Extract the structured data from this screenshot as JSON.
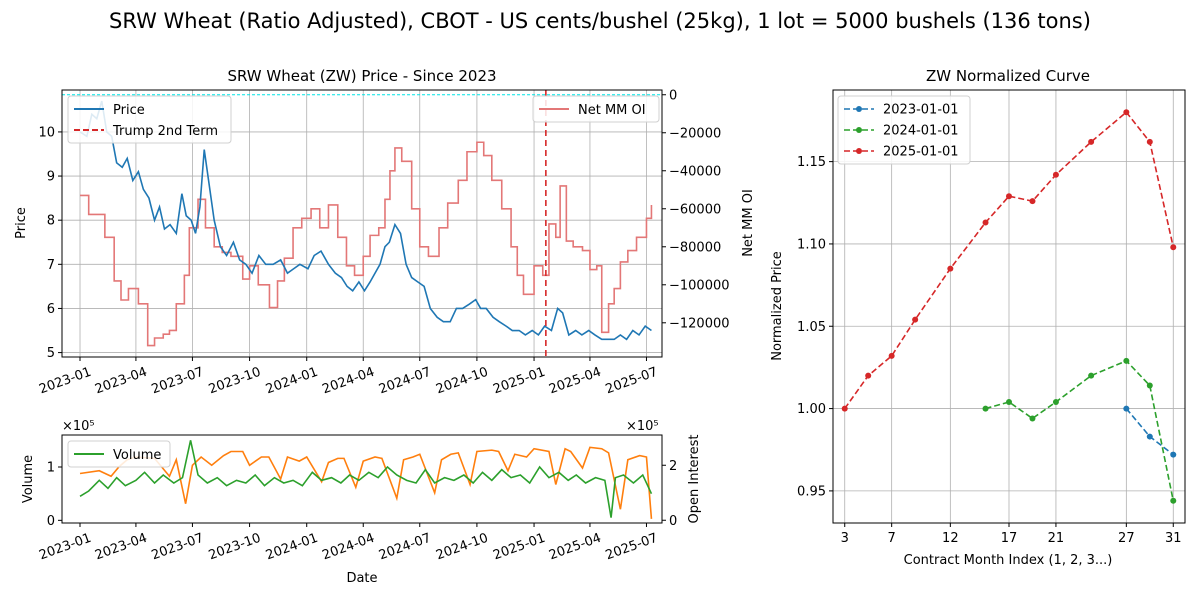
{
  "figure_title": "SRW Wheat (Ratio Adjusted), CBOT - US cents/bushel (25kg), 1 lot = 5000 bushels (136 tons)",
  "colors": {
    "price": "#1f77b4",
    "net_mm_oi": "#e37777",
    "trump": "#d62728",
    "zero_line": "#00e5e5",
    "volume": "#2ca02c",
    "open_interest": "#ff7f0e",
    "curve_2023": "#1f77b4",
    "curve_2024": "#2ca02c",
    "curve_2025": "#d62728",
    "grid": "#b0b0b0"
  },
  "chart_data": [
    {
      "type": "line",
      "title": "SRW Wheat (ZW) Price - Since 2023",
      "ylabel": "Price",
      "y2label": "Net MM OI",
      "ylim": [
        4.9,
        10.95
      ],
      "y2lim": [
        -138000,
        2500
      ],
      "xlim": [
        "2022-12-03",
        "2025-07-26"
      ],
      "yticks": [
        "5",
        "6",
        "7",
        "8",
        "9",
        "10"
      ],
      "y2ticks": [
        "−120000",
        "−100000",
        "−80000",
        "−60000",
        "−40000",
        "−20000",
        "0"
      ],
      "xticks": [
        "2023-01",
        "2023-04",
        "2023-07",
        "2023-10",
        "2024-01",
        "2024-04",
        "2024-07",
        "2024-10",
        "2025-01",
        "2025-04",
        "2025-07"
      ],
      "grid": true,
      "legend_left": [
        "Price",
        "Trump 2nd Term"
      ],
      "legend_right": [
        "Net MM OI"
      ],
      "trump_date": "2025-01-20",
      "series": [
        {
          "name": "Price",
          "x": [
            "2023-01-01",
            "2023-01-12",
            "2023-01-20",
            "2023-01-28",
            "2023-02-05",
            "2023-02-13",
            "2023-02-21",
            "2023-03-01",
            "2023-03-10",
            "2023-03-18",
            "2023-03-27",
            "2023-04-05",
            "2023-04-13",
            "2023-04-22",
            "2023-05-01",
            "2023-05-09",
            "2023-05-17",
            "2023-05-26",
            "2023-06-05",
            "2023-06-14",
            "2023-06-21",
            "2023-06-29",
            "2023-07-06",
            "2023-07-13",
            "2023-07-20",
            "2023-07-27",
            "2023-08-05",
            "2023-08-15",
            "2023-08-25",
            "2023-09-05",
            "2023-09-15",
            "2023-09-25",
            "2023-10-05",
            "2023-10-16",
            "2023-10-27",
            "2023-11-08",
            "2023-11-20",
            "2023-12-01",
            "2023-12-11",
            "2023-12-21",
            "2024-01-03",
            "2024-01-13",
            "2024-01-24",
            "2024-02-05",
            "2024-02-16",
            "2024-02-26",
            "2024-03-06",
            "2024-03-15",
            "2024-03-25",
            "2024-04-03",
            "2024-04-12",
            "2024-04-20",
            "2024-04-28",
            "2024-05-06",
            "2024-05-13",
            "2024-05-22",
            "2024-05-31",
            "2024-06-09",
            "2024-06-18",
            "2024-06-28",
            "2024-07-08",
            "2024-07-18",
            "2024-07-29",
            "2024-08-08",
            "2024-08-19",
            "2024-08-29",
            "2024-09-08",
            "2024-09-19",
            "2024-09-29",
            "2024-10-07",
            "2024-10-16",
            "2024-10-27",
            "2024-11-06",
            "2024-11-17",
            "2024-11-27",
            "2024-12-08",
            "2024-12-18",
            "2024-12-29",
            "2025-01-08",
            "2025-01-18",
            "2025-01-29",
            "2025-02-08",
            "2025-02-16",
            "2025-02-26",
            "2025-03-09",
            "2025-03-19",
            "2025-03-30",
            "2025-04-09",
            "2025-04-20",
            "2025-04-30",
            "2025-05-10",
            "2025-05-20",
            "2025-05-30",
            "2025-06-09",
            "2025-06-19",
            "2025-06-29",
            "2025-07-09"
          ],
          "values": [
            10.0,
            9.9,
            10.4,
            10.3,
            10.7,
            10.0,
            9.9,
            9.3,
            9.2,
            9.4,
            8.9,
            9.1,
            8.7,
            8.5,
            8.0,
            8.3,
            7.8,
            7.9,
            7.7,
            8.6,
            8.1,
            8.0,
            7.7,
            8.3,
            9.6,
            8.9,
            8.0,
            7.4,
            7.2,
            7.5,
            7.1,
            7.0,
            6.8,
            7.2,
            7.0,
            7.0,
            7.1,
            6.8,
            6.9,
            7.0,
            6.9,
            7.2,
            7.3,
            7.0,
            6.8,
            6.7,
            6.5,
            6.4,
            6.6,
            6.4,
            6.6,
            6.8,
            7.0,
            7.4,
            7.5,
            7.9,
            7.7,
            7.0,
            6.7,
            6.6,
            6.5,
            6.0,
            5.8,
            5.7,
            5.7,
            6.0,
            6.0,
            6.1,
            6.2,
            6.0,
            6.0,
            5.8,
            5.7,
            5.6,
            5.5,
            5.5,
            5.4,
            5.5,
            5.4,
            5.6,
            5.5,
            6.0,
            5.9,
            5.4,
            5.5,
            5.4,
            5.5,
            5.4,
            5.3,
            5.3,
            5.3,
            5.4,
            5.3,
            5.5,
            5.4,
            5.6,
            5.5
          ]
        },
        {
          "name": "Net MM OI",
          "x": [
            "2023-01-01",
            "2023-01-15",
            "2023-02-10",
            "2023-02-25",
            "2023-03-08",
            "2023-03-20",
            "2023-04-05",
            "2023-04-20",
            "2023-05-01",
            "2023-05-15",
            "2023-05-25",
            "2023-06-05",
            "2023-06-18",
            "2023-06-26",
            "2023-07-10",
            "2023-07-22",
            "2023-08-05",
            "2023-08-18",
            "2023-09-01",
            "2023-09-20",
            "2023-10-01",
            "2023-10-15",
            "2023-11-02",
            "2023-11-15",
            "2023-11-26",
            "2023-12-10",
            "2023-12-24",
            "2024-01-08",
            "2024-01-22",
            "2024-02-05",
            "2024-02-20",
            "2024-03-05",
            "2024-03-18",
            "2024-04-01",
            "2024-04-12",
            "2024-04-26",
            "2024-05-06",
            "2024-05-14",
            "2024-05-22",
            "2024-06-02",
            "2024-06-18",
            "2024-07-01",
            "2024-07-15",
            "2024-08-01",
            "2024-08-15",
            "2024-09-01",
            "2024-09-15",
            "2024-10-01",
            "2024-10-12",
            "2024-10-25",
            "2024-11-10",
            "2024-11-25",
            "2024-12-05",
            "2024-12-15",
            "2025-01-01",
            "2025-01-15",
            "2025-01-25",
            "2025-02-05",
            "2025-02-12",
            "2025-02-22",
            "2025-03-05",
            "2025-03-20",
            "2025-04-01",
            "2025-04-12",
            "2025-04-20",
            "2025-05-01",
            "2025-05-10",
            "2025-05-20",
            "2025-06-01",
            "2025-06-15",
            "2025-07-01",
            "2025-07-09"
          ],
          "values": [
            -53000,
            -63000,
            -75000,
            -98000,
            -108000,
            -102000,
            -110000,
            -132000,
            -128000,
            -126000,
            -124000,
            -110000,
            -95000,
            -70000,
            -55000,
            -70000,
            -80000,
            -83000,
            -85000,
            -97000,
            -90000,
            -100000,
            -112000,
            -98000,
            -86000,
            -70000,
            -65000,
            -60000,
            -70000,
            -58000,
            -75000,
            -90000,
            -95000,
            -85000,
            -74000,
            -70000,
            -55000,
            -40000,
            -28000,
            -35000,
            -60000,
            -80000,
            -85000,
            -70000,
            -57000,
            -45000,
            -30000,
            -25000,
            -32000,
            -45000,
            -60000,
            -80000,
            -95000,
            -105000,
            -90000,
            -95000,
            -68000,
            -75000,
            -48000,
            -77000,
            -80000,
            -82000,
            -92000,
            -90000,
            -125000,
            -110000,
            -102000,
            -88000,
            -82000,
            -75000,
            -65000,
            -58000
          ]
        }
      ]
    },
    {
      "type": "line",
      "ylabel": "Volume",
      "y2label": "Open Interest",
      "xlabel": "Date",
      "ylim": [
        -5000,
        160000
      ],
      "y2lim": [
        -10000,
        310000
      ],
      "yticks": [
        "0",
        "1"
      ],
      "y2ticks": [
        "0",
        "2"
      ],
      "y_multiplier": "×10⁵",
      "y2_multiplier": "×10⁵",
      "xticks": [
        "2023-01",
        "2023-04",
        "2023-07",
        "2023-10",
        "2024-01",
        "2024-04",
        "2024-07",
        "2024-10",
        "2025-01",
        "2025-04",
        "2025-07"
      ],
      "grid": false,
      "legend": [
        "Volume"
      ],
      "series": [
        {
          "name": "Volume",
          "x": [
            "2023-01-01",
            "2023-01-15",
            "2023-02-01",
            "2023-02-15",
            "2023-03-01",
            "2023-03-15",
            "2023-04-01",
            "2023-04-15",
            "2023-05-01",
            "2023-05-15",
            "2023-06-01",
            "2023-06-15",
            "2023-06-28",
            "2023-07-10",
            "2023-07-25",
            "2023-08-10",
            "2023-08-25",
            "2023-09-10",
            "2023-09-25",
            "2023-10-10",
            "2023-10-25",
            "2023-11-10",
            "2023-11-25",
            "2023-12-10",
            "2023-12-25",
            "2024-01-10",
            "2024-01-25",
            "2024-02-10",
            "2024-02-25",
            "2024-03-10",
            "2024-03-25",
            "2024-04-10",
            "2024-04-25",
            "2024-05-10",
            "2024-05-25",
            "2024-06-10",
            "2024-06-25",
            "2024-07-10",
            "2024-07-25",
            "2024-08-10",
            "2024-08-25",
            "2024-09-10",
            "2024-09-25",
            "2024-10-10",
            "2024-10-25",
            "2024-11-10",
            "2024-11-25",
            "2024-12-10",
            "2024-12-25",
            "2025-01-10",
            "2025-01-25",
            "2025-02-10",
            "2025-02-25",
            "2025-03-10",
            "2025-03-25",
            "2025-04-10",
            "2025-04-25",
            "2025-05-05",
            "2025-05-12",
            "2025-05-25",
            "2025-06-10",
            "2025-06-25",
            "2025-07-09"
          ],
          "values": [
            45000,
            55000,
            75000,
            60000,
            80000,
            65000,
            75000,
            90000,
            70000,
            85000,
            70000,
            80000,
            150000,
            85000,
            70000,
            80000,
            65000,
            75000,
            70000,
            85000,
            65000,
            80000,
            70000,
            75000,
            65000,
            90000,
            75000,
            80000,
            70000,
            85000,
            75000,
            90000,
            80000,
            100000,
            85000,
            75000,
            70000,
            95000,
            70000,
            80000,
            75000,
            85000,
            70000,
            90000,
            75000,
            95000,
            80000,
            85000,
            70000,
            100000,
            80000,
            90000,
            75000,
            85000,
            70000,
            80000,
            75000,
            5000,
            80000,
            85000,
            70000,
            85000,
            50000
          ]
        },
        {
          "name": "Open Interest",
          "x": [
            "2023-01-01",
            "2023-02-01",
            "2023-02-20",
            "2023-03-05",
            "2023-03-18",
            "2023-04-01",
            "2023-05-01",
            "2023-05-25",
            "2023-06-05",
            "2023-06-20",
            "2023-07-01",
            "2023-07-15",
            "2023-08-01",
            "2023-08-20",
            "2023-09-01",
            "2023-09-20",
            "2023-10-01",
            "2023-10-20",
            "2023-11-01",
            "2023-11-20",
            "2023-12-01",
            "2023-12-20",
            "2024-01-01",
            "2024-01-25",
            "2024-02-05",
            "2024-02-20",
            "2024-03-01",
            "2024-03-20",
            "2024-04-01",
            "2024-04-20",
            "2024-05-01",
            "2024-05-25",
            "2024-06-05",
            "2024-06-20",
            "2024-07-01",
            "2024-07-25",
            "2024-08-05",
            "2024-08-20",
            "2024-09-01",
            "2024-09-20",
            "2024-10-01",
            "2024-10-25",
            "2024-11-05",
            "2024-11-20",
            "2024-12-01",
            "2024-12-20",
            "2025-01-01",
            "2025-01-25",
            "2025-02-05",
            "2025-02-20",
            "2025-03-01",
            "2025-03-20",
            "2025-04-01",
            "2025-04-20",
            "2025-05-01",
            "2025-05-20",
            "2025-06-01",
            "2025-06-20",
            "2025-07-01",
            "2025-07-09"
          ],
          "values": [
            170000,
            180000,
            160000,
            195000,
            220000,
            230000,
            225000,
            160000,
            220000,
            60000,
            200000,
            230000,
            200000,
            235000,
            250000,
            250000,
            200000,
            230000,
            230000,
            150000,
            230000,
            215000,
            230000,
            140000,
            210000,
            225000,
            225000,
            120000,
            215000,
            230000,
            225000,
            80000,
            220000,
            230000,
            240000,
            100000,
            220000,
            240000,
            245000,
            130000,
            250000,
            255000,
            250000,
            180000,
            240000,
            230000,
            260000,
            250000,
            130000,
            260000,
            250000,
            190000,
            265000,
            260000,
            245000,
            40000,
            220000,
            235000,
            230000,
            5000
          ]
        }
      ]
    },
    {
      "type": "line",
      "title": "ZW Normalized Curve",
      "xlabel": "Contract Month Index (1, 2, 3...)",
      "ylabel": "Normalized Price",
      "xlim": [
        2.0,
        32.0
      ],
      "ylim": [
        0.9305,
        1.1935
      ],
      "xticks": [
        3,
        7,
        12,
        17,
        21,
        27,
        31
      ],
      "yticks": [
        "0.95",
        "1.00",
        "1.05",
        "1.10",
        "1.15"
      ],
      "grid": true,
      "legend": "upper left",
      "series": [
        {
          "name": "2023-01-01",
          "x": [
            27,
            29,
            31
          ],
          "values": [
            1.0,
            0.983,
            0.972
          ]
        },
        {
          "name": "2024-01-01",
          "x": [
            15,
            17,
            19,
            21,
            24,
            27,
            29,
            31
          ],
          "values": [
            1.0,
            1.004,
            0.994,
            1.004,
            1.02,
            1.029,
            1.014,
            0.944
          ]
        },
        {
          "name": "2025-01-01",
          "x": [
            3,
            5,
            7,
            9,
            12,
            15,
            17,
            19,
            21,
            24,
            27,
            29,
            31
          ],
          "values": [
            1.0,
            1.02,
            1.032,
            1.054,
            1.085,
            1.113,
            1.129,
            1.126,
            1.142,
            1.162,
            1.18,
            1.162,
            1.098
          ]
        }
      ]
    }
  ]
}
